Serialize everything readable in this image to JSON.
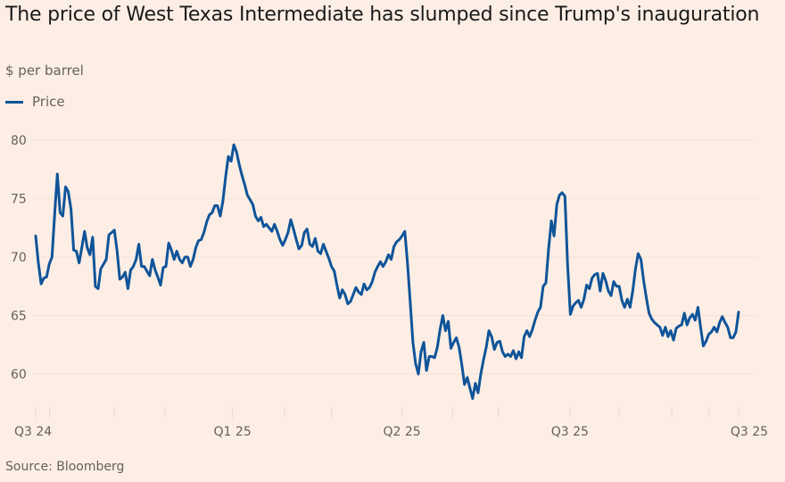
{
  "header": {
    "title": "The price of West Texas Intermediate has slumped since Trump's inauguration",
    "subtitle": "$ per barrel"
  },
  "legend": {
    "label": "Price",
    "color": "#0f5499"
  },
  "footer": {
    "source": "Source: Bloomberg"
  },
  "colors": {
    "background": "#fdeee5",
    "line": "#0f5499",
    "grid": "#f3e2d8",
    "text": "#66605c"
  },
  "chart_data": {
    "type": "line",
    "title": "The price of West Texas Intermediate has slumped since Trump's inauguration",
    "ylabel": "$ per barrel",
    "xlabel": "",
    "ylim": [
      57,
      80.5
    ],
    "yticks": [
      60,
      65,
      70,
      75,
      80
    ],
    "grid": true,
    "legend_position": "top-left",
    "x_range": [
      0,
      100
    ],
    "xtick_labels": [
      {
        "label": "Q3 24",
        "pos": 0
      },
      {
        "label": "Q1 25",
        "pos": 28.0
      },
      {
        "label": "Q2 25",
        "pos": 52.1
      },
      {
        "label": "Q3 25",
        "pos": 76.0
      },
      {
        "label": "Q3 25",
        "pos": 100
      }
    ],
    "minor_ticks": [
      2.0,
      11.2,
      18.4,
      35.4,
      42.1,
      59.3,
      65.8,
      83.0,
      90.5,
      95.8
    ],
    "series": [
      {
        "name": "Price",
        "values": [
          71.8,
          69.5,
          67.7,
          68.2,
          68.3,
          69.4,
          70.0,
          73.7,
          77.1,
          73.8,
          73.5,
          76.0,
          75.6,
          74.1,
          70.6,
          70.5,
          69.5,
          70.8,
          72.2,
          70.8,
          70.2,
          71.7,
          67.5,
          67.3,
          69.0,
          69.4,
          69.8,
          71.9,
          72.1,
          72.3,
          70.5,
          68.1,
          68.3,
          68.7,
          67.3,
          68.9,
          69.2,
          69.8,
          71.1,
          69.2,
          69.2,
          68.8,
          68.4,
          69.8,
          68.9,
          68.3,
          67.6,
          69.1,
          69.2,
          71.2,
          70.6,
          69.8,
          70.5,
          69.8,
          69.5,
          70.0,
          70.0,
          69.2,
          69.8,
          70.8,
          71.4,
          71.5,
          72.1,
          73.0,
          73.6,
          73.8,
          74.4,
          74.4,
          73.5,
          74.8,
          76.9,
          78.6,
          78.2,
          79.6,
          79.0,
          77.9,
          77.0,
          76.2,
          75.3,
          74.9,
          74.5,
          73.5,
          73.1,
          73.4,
          72.6,
          72.8,
          72.5,
          72.2,
          72.8,
          72.2,
          71.5,
          71.0,
          71.5,
          72.1,
          73.2,
          72.4,
          71.5,
          70.7,
          71.0,
          72.1,
          72.4,
          71.1,
          70.9,
          71.6,
          70.5,
          70.3,
          71.1,
          70.5,
          69.9,
          69.2,
          68.8,
          67.6,
          66.5,
          67.2,
          66.8,
          66.0,
          66.2,
          66.8,
          67.4,
          67.0,
          66.8,
          67.7,
          67.2,
          67.4,
          67.9,
          68.7,
          69.2,
          69.6,
          69.2,
          69.6,
          70.2,
          69.8,
          70.9,
          71.3,
          71.5,
          71.8,
          72.2,
          69.5,
          66.1,
          62.7,
          60.9,
          60.0,
          61.9,
          62.7,
          60.3,
          61.5,
          61.5,
          61.4,
          62.3,
          63.8,
          65.0,
          63.7,
          64.5,
          62.2,
          62.7,
          63.1,
          62.3,
          60.8,
          59.1,
          59.7,
          58.8,
          57.9,
          59.2,
          58.4,
          60.0,
          61.2,
          62.3,
          63.7,
          63.2,
          62.1,
          62.7,
          62.8,
          61.9,
          61.5,
          61.7,
          61.5,
          62.0,
          61.3,
          61.9,
          61.4,
          63.2,
          63.7,
          63.2,
          63.8,
          64.6,
          65.3,
          65.7,
          67.5,
          67.8,
          70.7,
          73.1,
          71.8,
          74.5,
          75.3,
          75.5,
          75.2,
          69.3,
          65.1,
          65.8,
          66.1,
          66.3,
          65.7,
          66.4,
          67.6,
          67.3,
          68.2,
          68.5,
          68.6,
          67.1,
          68.6,
          68.0,
          67.1,
          66.7,
          67.9,
          67.5,
          67.5,
          66.3,
          65.7,
          66.4,
          65.7,
          67.1,
          69.0,
          70.3,
          69.8,
          68.0,
          66.5,
          65.2,
          64.7,
          64.4,
          64.2,
          64.0,
          63.3,
          64.0,
          63.2,
          63.7,
          62.9,
          63.9,
          64.1,
          64.2,
          65.2,
          64.2,
          64.8,
          65.1,
          64.6,
          65.7,
          64.0,
          62.4,
          62.8,
          63.4,
          63.6,
          64.0,
          63.6,
          64.4,
          64.9,
          64.4,
          64.0,
          63.1,
          63.1,
          63.6,
          65.3
        ]
      }
    ]
  }
}
